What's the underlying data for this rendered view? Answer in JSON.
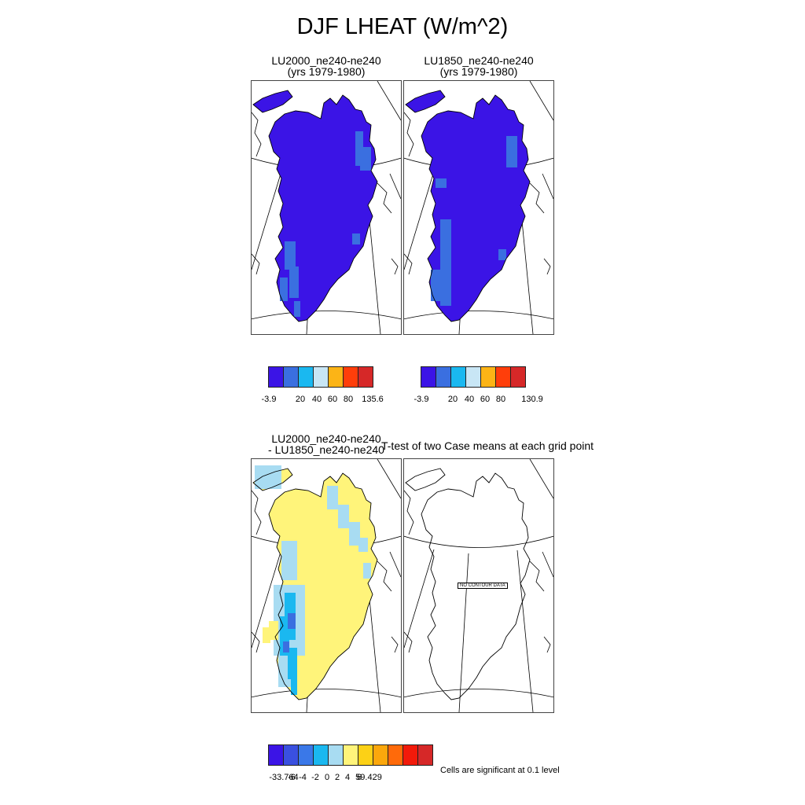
{
  "title": "DJF LHEAT (W/m^2)",
  "panels": {
    "lu2000": {
      "title_line1": "LU2000_ne240-ne240",
      "title_line2": "(yrs 1979-1980)"
    },
    "lu1850": {
      "title_line1": "LU1850_ne240-ne240",
      "title_line2": "(yrs 1979-1980)"
    },
    "diff": {
      "title_line1": "LU2000_ne240-ne240",
      "title_line2": "- LU1850_ne240-ne240"
    },
    "ttest": {
      "title": "T-test of two Case means at each grid point",
      "no_data_label": "NO CONTOUR DATA"
    }
  },
  "colorbars": {
    "lu2000": {
      "colors": [
        "#3b14e6",
        "#3a6fe0",
        "#1ab8f0",
        "#c8e6f5",
        "#fcb416",
        "#ff3e0a",
        "#d62828"
      ],
      "labels": [
        "-3.9",
        "20",
        "40",
        "60",
        "80",
        "135.6"
      ]
    },
    "lu1850": {
      "colors": [
        "#3b14e6",
        "#3a6fe0",
        "#1ab8f0",
        "#c8e6f5",
        "#fcb416",
        "#ff3e0a",
        "#d62828"
      ],
      "labels": [
        "-3.9",
        "20",
        "40",
        "60",
        "80",
        "130.9"
      ]
    },
    "diff": {
      "colors": [
        "#3b14e6",
        "#3a50e0",
        "#3a78e8",
        "#1ab8f0",
        "#a8dcf2",
        "#fff47a",
        "#fcd116",
        "#fba70c",
        "#ff6a0a",
        "#f21a0a",
        "#d62828"
      ],
      "labels": [
        "-33.764",
        "-6",
        "-4",
        "-2",
        "0",
        "2",
        "4",
        "6",
        "59.429"
      ]
    }
  },
  "footnote": "Cells are significant at 0.1 level",
  "map_colors": {
    "dark_blue": "#3b14e6",
    "mid_blue": "#3a6fe0",
    "cyan": "#1ab8f0",
    "light_blue": "#a8dcf2",
    "yellow": "#fff47a",
    "coast": "#000000"
  }
}
